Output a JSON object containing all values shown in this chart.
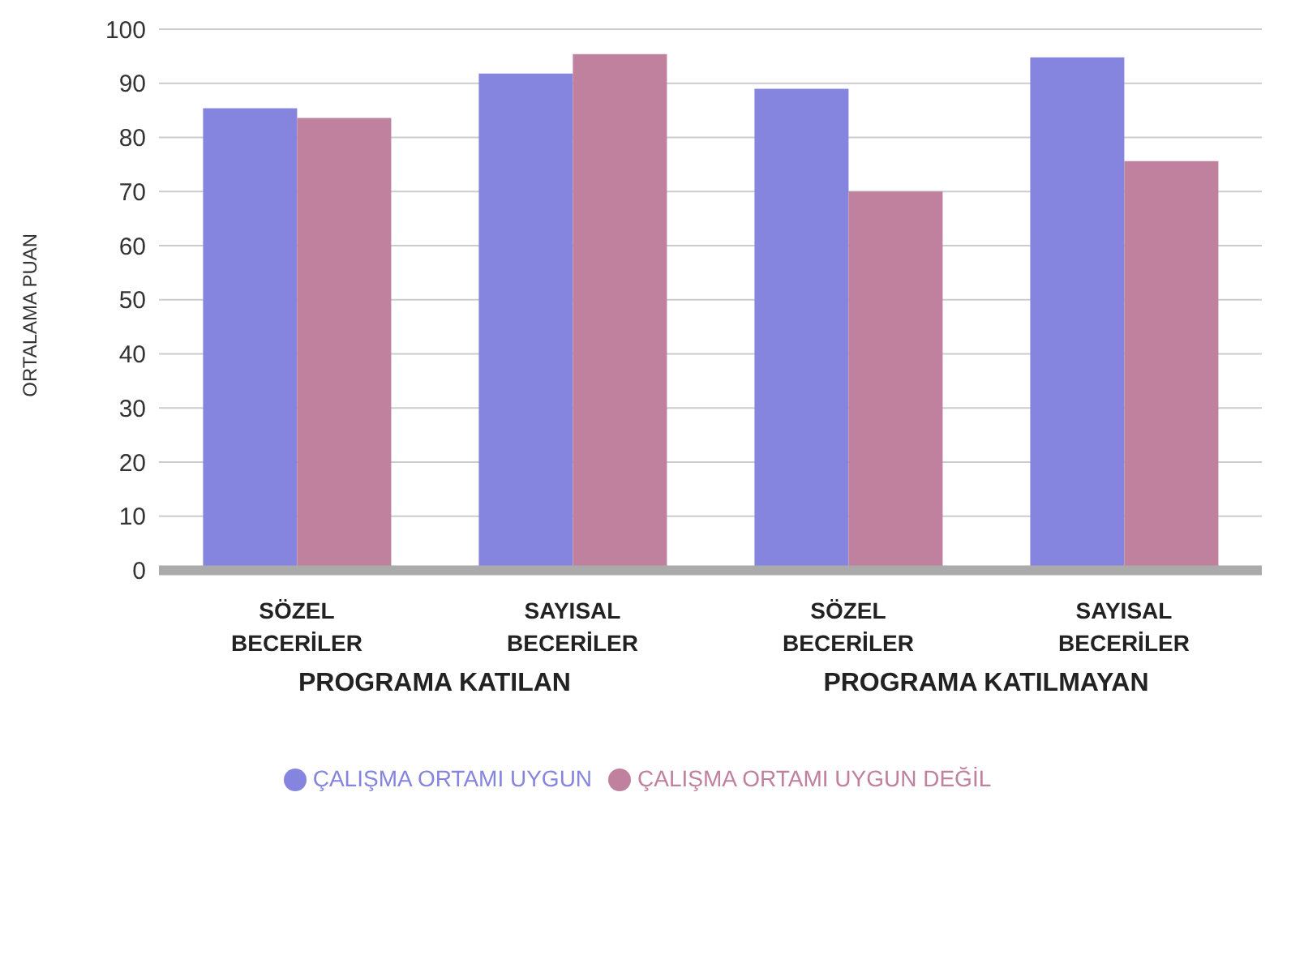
{
  "chart_data": {
    "type": "bar",
    "ylabel": "ORTALAMA PUAN",
    "categories": [
      "SÖZEL BECERİLER",
      "SAYISAL BECERİLER",
      "SÖZEL BECERİLER",
      "SAYISAL BECERİLER"
    ],
    "series": [
      {
        "name": "ÇALIŞMA ORTAMI UYGUN",
        "color": "#8585e0",
        "values": [
          85.4,
          91.8,
          89,
          94.8
        ]
      },
      {
        "name": "ÇALIŞMA ORTAMI UYGUN DEĞİL",
        "color": "#c0819f",
        "values": [
          83.6,
          95.4,
          70,
          75.6
        ]
      }
    ],
    "annotations": [
      "PROGRAMA KATILAN",
      "PROGRAMA KATILMAYAN"
    ],
    "ylim": [
      0,
      100
    ],
    "yticks": [
      0,
      10,
      20,
      30,
      40,
      50,
      60,
      70,
      80,
      90,
      100
    ],
    "grid": "y",
    "legend": "bottom"
  }
}
